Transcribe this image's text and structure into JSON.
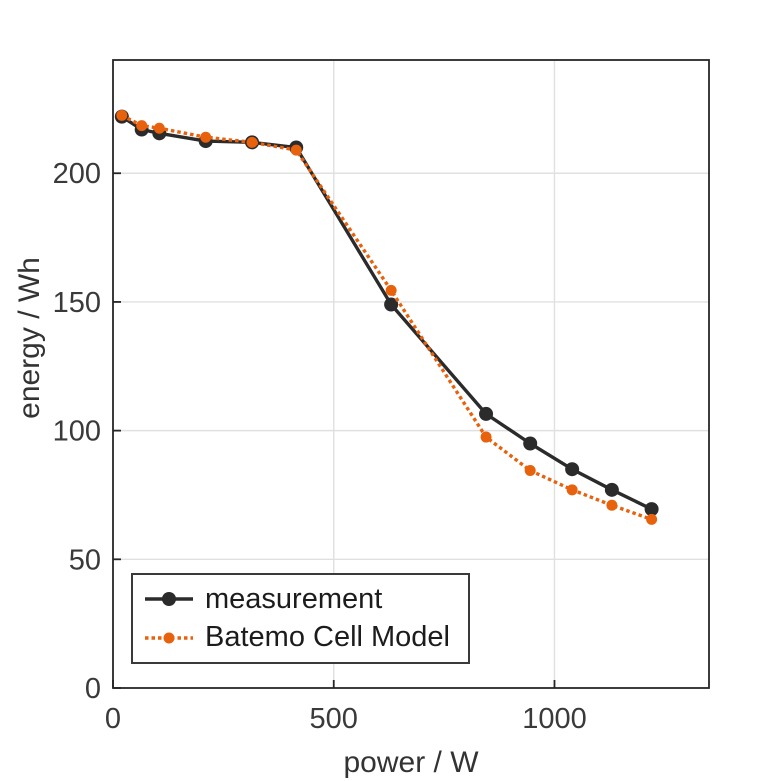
{
  "figure": {
    "background": "#ffffff",
    "frame_color": "#262626",
    "grid_color": "#e0e0e0",
    "tick_label_color": "#3a3a3a"
  },
  "chart_data": {
    "type": "line",
    "title": "",
    "xlabel": "power / W",
    "ylabel": "energy / Wh",
    "xlim": [
      0,
      1350
    ],
    "ylim": [
      0,
      244
    ],
    "x_ticks": [
      0,
      500,
      1000
    ],
    "x_tick_labels": [
      "0",
      "500",
      "1000"
    ],
    "y_ticks": [
      0,
      50,
      100,
      150,
      200
    ],
    "y_tick_labels": [
      "0",
      "50",
      "100",
      "150",
      "200"
    ],
    "grid": true,
    "legend_position": "bottom-left",
    "x": [
      20,
      65,
      105,
      210,
      315,
      415,
      630,
      845,
      945,
      1040,
      1130,
      1220
    ],
    "series": [
      {
        "name": "measurement",
        "color": "#2b2b2b",
        "line_style": "solid",
        "marker": "circle",
        "values": [
          222,
          217,
          215.5,
          212.5,
          212,
          210,
          149,
          106.5,
          95,
          85,
          77,
          69.5
        ]
      },
      {
        "name": "Batemo Cell Model",
        "color": "#e8610d",
        "line_style": "dotted",
        "marker": "circle",
        "values": [
          222.5,
          218.5,
          217.5,
          214,
          212,
          209,
          154.5,
          97.5,
          84.5,
          77,
          71,
          65.5
        ]
      }
    ]
  }
}
